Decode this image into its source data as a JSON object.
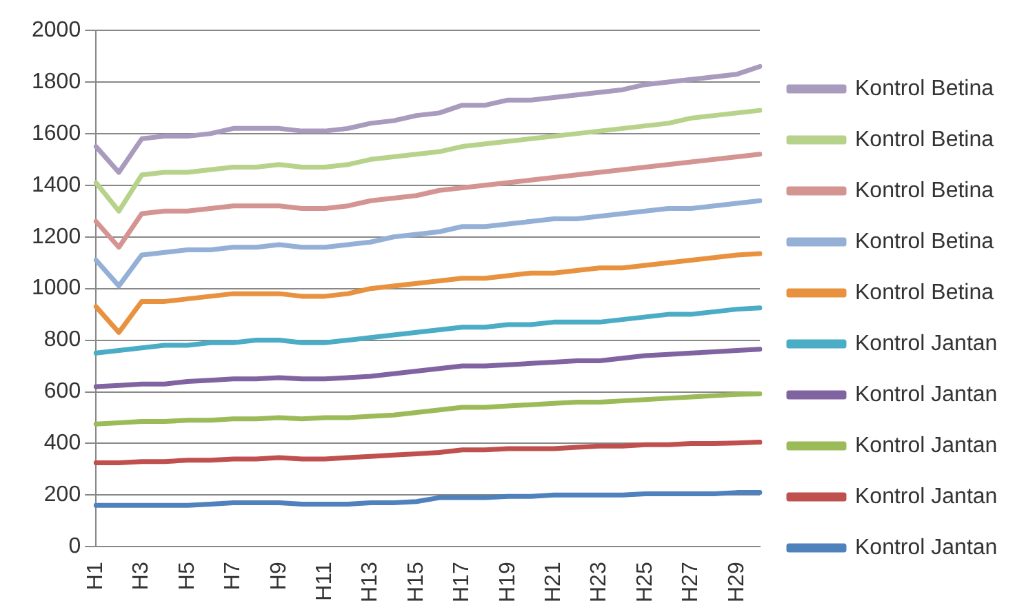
{
  "chart_data": {
    "type": "line",
    "categories": [
      "H1",
      null,
      "H3",
      null,
      "H5",
      null,
      "H7",
      null,
      "H9",
      null,
      "H11",
      null,
      "H13",
      null,
      "H15",
      null,
      "H17",
      null,
      "H19",
      null,
      "H21",
      null,
      "H23",
      null,
      "H25",
      null,
      "H27",
      null,
      "H29",
      null
    ],
    "ylim": [
      0,
      2000
    ],
    "yticks": [
      0,
      200,
      400,
      600,
      800,
      1000,
      1200,
      1400,
      1600,
      1800,
      2000
    ],
    "grid": "y",
    "legend": "right",
    "marker": "none",
    "series": [
      {
        "name": "Kontrol Betina",
        "color": "#a99bbd",
        "values": [
          1550,
          1450,
          1580,
          1590,
          1590,
          1600,
          1620,
          1620,
          1620,
          1610,
          1610,
          1620,
          1640,
          1650,
          1670,
          1680,
          1710,
          1710,
          1730,
          1730,
          1740,
          1750,
          1760,
          1770,
          1790,
          1800,
          1810,
          1820,
          1830,
          1860
        ]
      },
      {
        "name": "Kontrol Betina",
        "color": "#b7d38b",
        "values": [
          1410,
          1300,
          1440,
          1450,
          1450,
          1460,
          1470,
          1470,
          1480,
          1470,
          1470,
          1480,
          1500,
          1510,
          1520,
          1530,
          1550,
          1560,
          1570,
          1580,
          1590,
          1600,
          1610,
          1620,
          1630,
          1640,
          1660,
          1670,
          1680,
          1690
        ]
      },
      {
        "name": "Kontrol Betina",
        "color": "#d49492",
        "values": [
          1260,
          1160,
          1290,
          1300,
          1300,
          1310,
          1320,
          1320,
          1320,
          1310,
          1310,
          1320,
          1340,
          1350,
          1360,
          1380,
          1390,
          1400,
          1410,
          1420,
          1430,
          1440,
          1450,
          1460,
          1470,
          1480,
          1490,
          1500,
          1510,
          1520
        ]
      },
      {
        "name": "Kontrol Betina",
        "color": "#95b0d6",
        "values": [
          1110,
          1010,
          1130,
          1140,
          1150,
          1150,
          1160,
          1160,
          1170,
          1160,
          1160,
          1170,
          1180,
          1200,
          1210,
          1220,
          1240,
          1240,
          1250,
          1260,
          1270,
          1270,
          1280,
          1290,
          1300,
          1310,
          1310,
          1320,
          1330,
          1340
        ]
      },
      {
        "name": "Kontrol Betina",
        "color": "#e8923f",
        "values": [
          930,
          830,
          950,
          950,
          960,
          970,
          980,
          980,
          980,
          970,
          970,
          980,
          1000,
          1010,
          1020,
          1030,
          1040,
          1040,
          1050,
          1060,
          1060,
          1070,
          1080,
          1080,
          1090,
          1100,
          1110,
          1120,
          1130,
          1135
        ]
      },
      {
        "name": "Kontrol Jantan",
        "color": "#4bacc6",
        "values": [
          750,
          760,
          770,
          780,
          780,
          790,
          790,
          800,
          800,
          790,
          790,
          800,
          810,
          820,
          830,
          840,
          850,
          850,
          860,
          860,
          870,
          870,
          870,
          880,
          890,
          900,
          900,
          910,
          920,
          925
        ]
      },
      {
        "name": "Kontrol Jantan",
        "color": "#8064a2",
        "values": [
          620,
          625,
          630,
          630,
          640,
          645,
          650,
          650,
          655,
          650,
          650,
          655,
          660,
          670,
          680,
          690,
          700,
          700,
          705,
          710,
          715,
          720,
          720,
          730,
          740,
          745,
          750,
          755,
          760,
          765
        ]
      },
      {
        "name": "Kontrol Jantan",
        "color": "#9bbb59",
        "values": [
          475,
          480,
          485,
          485,
          490,
          490,
          495,
          495,
          500,
          495,
          500,
          500,
          505,
          510,
          520,
          530,
          540,
          540,
          545,
          550,
          555,
          560,
          560,
          565,
          570,
          575,
          580,
          585,
          590,
          592
        ]
      },
      {
        "name": "Kontrol Jantan",
        "color": "#c0504d",
        "values": [
          325,
          325,
          330,
          330,
          335,
          335,
          340,
          340,
          345,
          340,
          340,
          345,
          350,
          355,
          360,
          365,
          375,
          375,
          380,
          380,
          380,
          385,
          390,
          390,
          395,
          395,
          400,
          400,
          402,
          405
        ]
      },
      {
        "name": "Kontrol Jantan",
        "color": "#4f81bd",
        "values": [
          160,
          160,
          160,
          160,
          160,
          165,
          170,
          170,
          170,
          165,
          165,
          165,
          170,
          170,
          175,
          190,
          190,
          190,
          195,
          195,
          200,
          200,
          200,
          200,
          205,
          205,
          205,
          205,
          210,
          210
        ]
      }
    ]
  }
}
